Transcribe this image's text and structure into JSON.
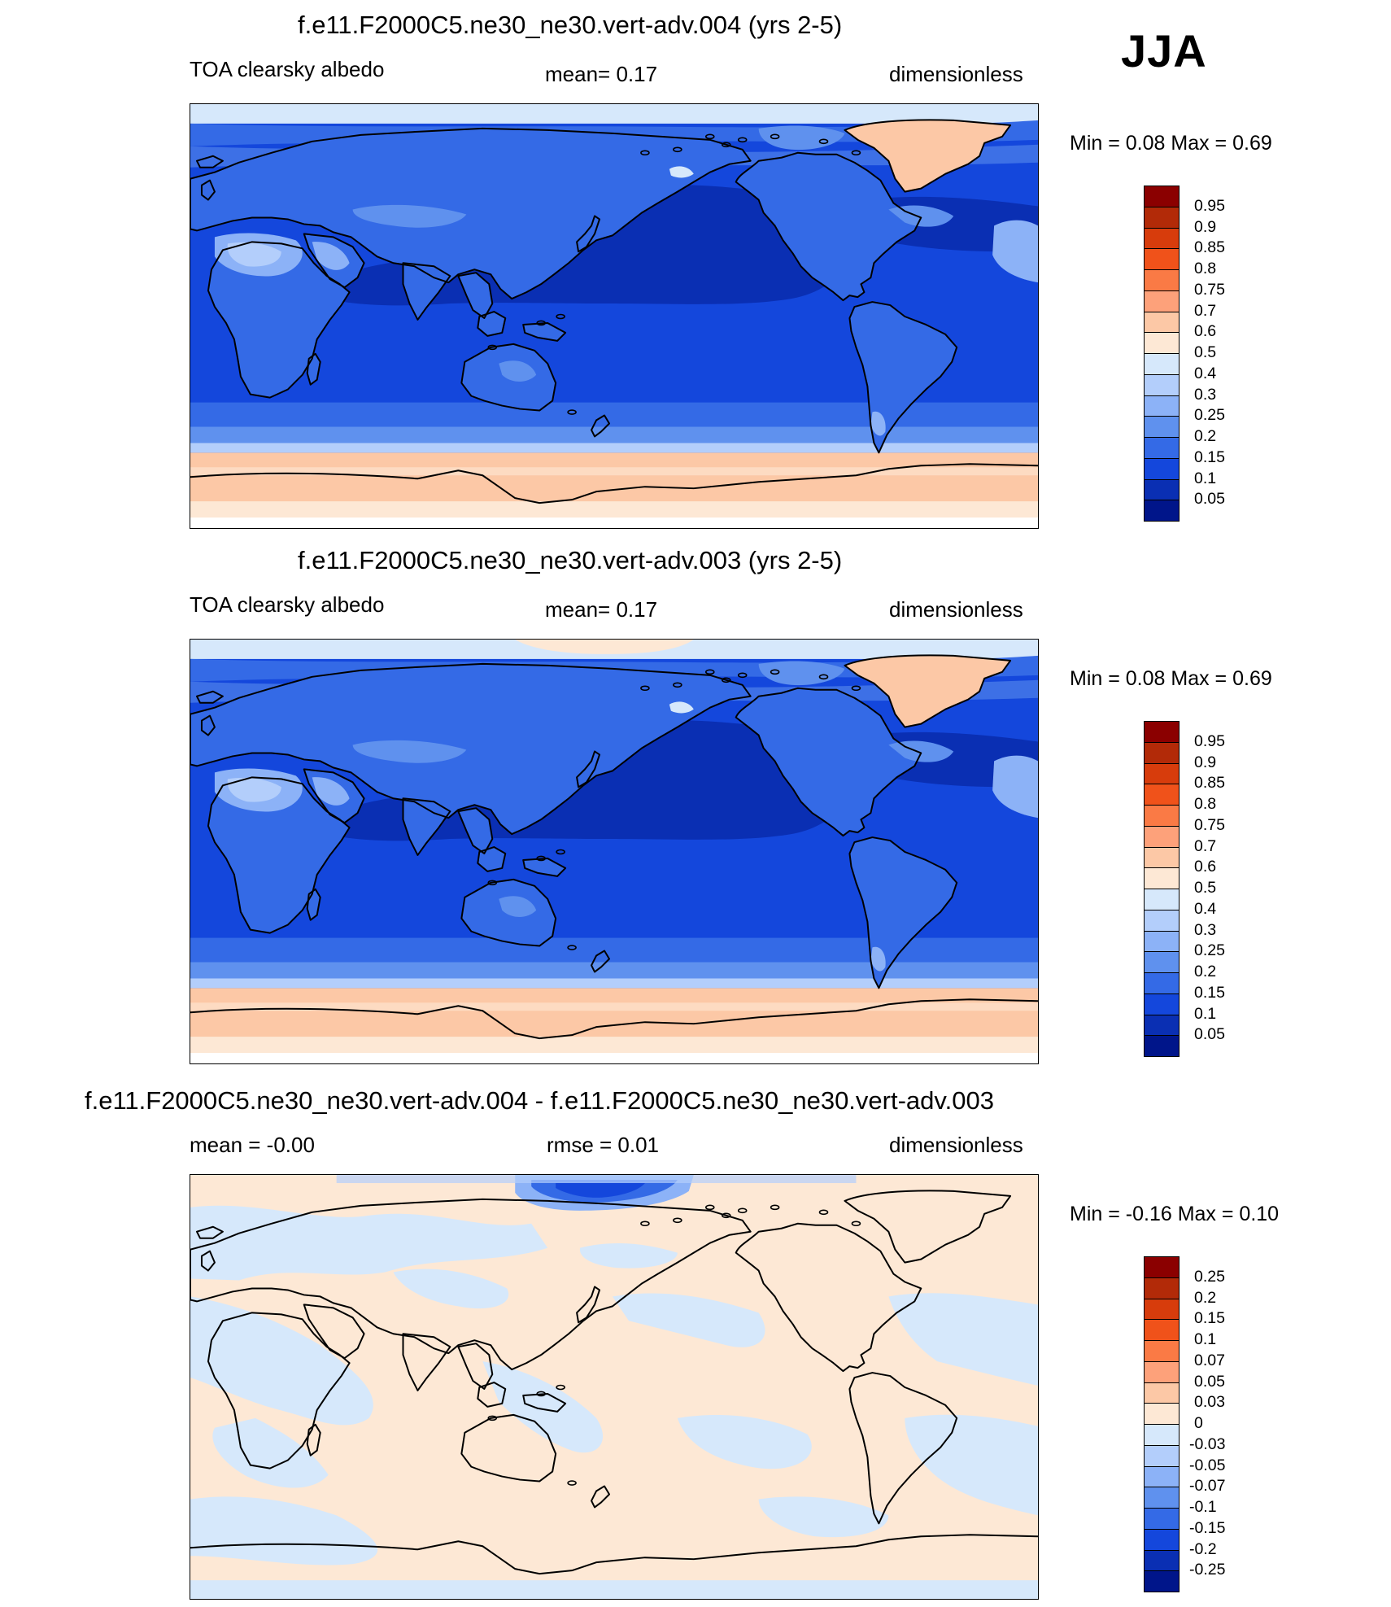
{
  "season": "JJA",
  "panels": [
    {
      "title": "f.e11.F2000C5.ne30_ne30.vert-adv.004 (yrs 2-5)",
      "left_label": "TOA clearsky albedo",
      "mid_label": "mean=   0.17",
      "units": "dimensionless",
      "minmax": "Min =    0.08 Max =    0.69",
      "colorbar": {
        "labels": [
          "0.95",
          "0.9",
          "0.85",
          "0.8",
          "0.75",
          "0.7",
          "0.6",
          "0.5",
          "0.4",
          "0.3",
          "0.25",
          "0.2",
          "0.15",
          "0.1",
          "0.05"
        ],
        "colors": [
          "#8b0000",
          "#b22a08",
          "#d73c0c",
          "#f0521a",
          "#fa7a45",
          "#fda17a",
          "#fcc8a6",
          "#fde8d5",
          "#d6e8fb",
          "#b3cefb",
          "#8cb2f7",
          "#5f91ee",
          "#346ae6",
          "#1447dc",
          "#0a2fb3",
          "#00158a"
        ]
      },
      "map": {
        "field": "albedo",
        "variant": "a"
      }
    },
    {
      "title": "f.e11.F2000C5.ne30_ne30.vert-adv.003 (yrs 2-5)",
      "left_label": "TOA clearsky albedo",
      "mid_label": "mean=   0.17",
      "units": "dimensionless",
      "minmax": "Min =    0.08 Max =    0.69",
      "colorbar": {
        "labels": [
          "0.95",
          "0.9",
          "0.85",
          "0.8",
          "0.75",
          "0.7",
          "0.6",
          "0.5",
          "0.4",
          "0.3",
          "0.25",
          "0.2",
          "0.15",
          "0.1",
          "0.05"
        ],
        "colors": [
          "#8b0000",
          "#b22a08",
          "#d73c0c",
          "#f0521a",
          "#fa7a45",
          "#fda17a",
          "#fcc8a6",
          "#fde8d5",
          "#d6e8fb",
          "#b3cefb",
          "#8cb2f7",
          "#5f91ee",
          "#346ae6",
          "#1447dc",
          "#0a2fb3",
          "#00158a"
        ]
      },
      "map": {
        "field": "albedo",
        "variant": "b"
      }
    },
    {
      "title": "f.e11.F2000C5.ne30_ne30.vert-adv.004 - f.e11.F2000C5.ne30_ne30.vert-adv.003",
      "left_label": "mean =  -0.00",
      "mid_label": "rmse =   0.01",
      "units": "dimensionless",
      "minmax": "Min =  -0.16 Max =   0.10",
      "colorbar": {
        "labels": [
          "0.25",
          "0.2",
          "0.15",
          "0.1",
          "0.07",
          "0.05",
          "0.03",
          "0",
          "-0.03",
          "-0.05",
          "-0.07",
          "-0.1",
          "-0.15",
          "-0.2",
          "-0.25"
        ],
        "colors": [
          "#8b0000",
          "#b22a08",
          "#d73c0c",
          "#f0521a",
          "#fa7a45",
          "#fda17a",
          "#fcc8a6",
          "#fde8d5",
          "#d6e8fb",
          "#b3cefb",
          "#8cb2f7",
          "#5f91ee",
          "#346ae6",
          "#1447dc",
          "#0a2fb3",
          "#00158a"
        ]
      },
      "map": {
        "field": "difference",
        "variant": "diff"
      }
    }
  ]
}
